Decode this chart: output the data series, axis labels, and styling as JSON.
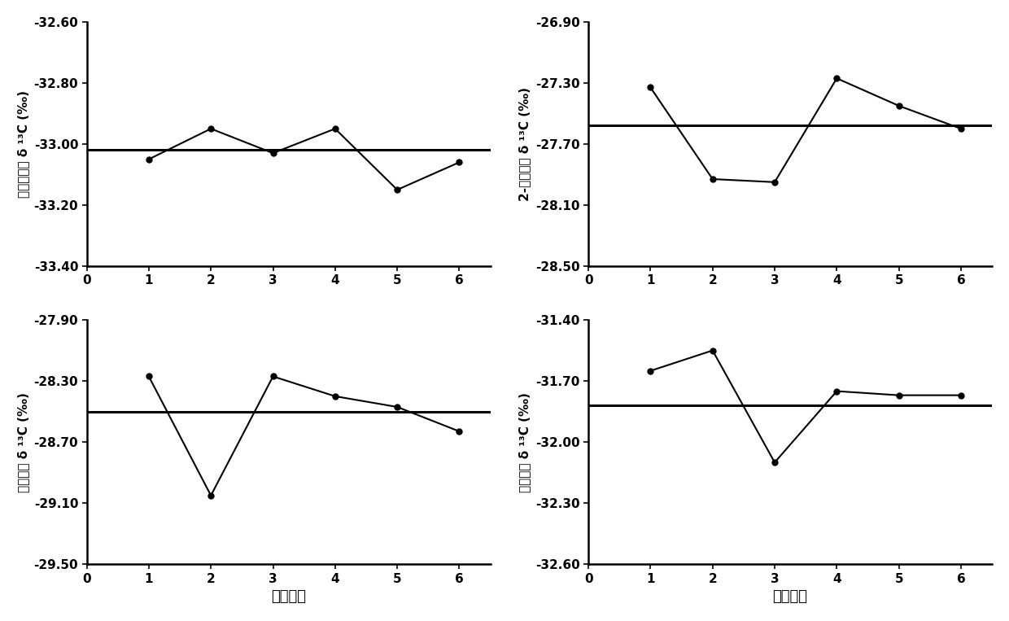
{
  "subplots": [
    {
      "ylabel_chinese": "乙酸异戊鄙",
      "ylabel_delta": "δ ¹³C (‰)",
      "xlabel": "",
      "x": [
        1,
        2,
        3,
        4,
        5,
        6
      ],
      "y": [
        -33.05,
        -32.95,
        -33.03,
        -32.95,
        -33.15,
        -33.06
      ],
      "hline": -33.02,
      "ylim": [
        -33.4,
        -32.6
      ],
      "yticks": [
        -33.4,
        -33.2,
        -33.0,
        -32.8,
        -32.6
      ],
      "ytick_labels": [
        "-33.40",
        "-33.20",
        "-33.00",
        "-32.80",
        "-32.60"
      ]
    },
    {
      "ylabel_chinese": "2-苯基乙醇",
      "ylabel_delta": "δ ¹³C (‰)",
      "xlabel": "",
      "x": [
        1,
        2,
        3,
        4,
        5,
        6
      ],
      "y": [
        -27.33,
        -27.93,
        -27.95,
        -27.27,
        -27.45,
        -27.6
      ],
      "hline": -27.58,
      "ylim": [
        -28.5,
        -26.9
      ],
      "yticks": [
        -28.5,
        -28.1,
        -27.7,
        -27.3,
        -26.9
      ],
      "ytick_labels": [
        "-28.50",
        "-28.10",
        "-27.70",
        "-27.30",
        "-26.90"
      ]
    },
    {
      "ylabel_chinese": "辛酸乙鄙",
      "ylabel_delta": "δ ¹³C (‰)",
      "xlabel": "实验次数",
      "x": [
        1,
        2,
        3,
        4,
        5,
        6
      ],
      "y": [
        -28.27,
        -29.05,
        -28.27,
        -28.4,
        -28.47,
        -28.63
      ],
      "hline": -28.5,
      "ylim": [
        -29.5,
        -27.9
      ],
      "yticks": [
        -29.5,
        -29.1,
        -28.7,
        -28.3,
        -27.9
      ],
      "ytick_labels": [
        "-29.50",
        "-29.10",
        "-28.70",
        "-28.30",
        "-27.90"
      ]
    },
    {
      "ylabel_chinese": "癸酸乙鄙",
      "ylabel_delta": "δ ¹³C (‰)",
      "xlabel": "实验次数",
      "x": [
        1,
        2,
        3,
        4,
        5,
        6
      ],
      "y": [
        -31.65,
        -31.55,
        -32.1,
        -31.75,
        -31.77,
        -31.77
      ],
      "hline": -31.82,
      "ylim": [
        -32.6,
        -31.4
      ],
      "yticks": [
        -32.6,
        -32.3,
        -32.0,
        -31.7,
        -31.4
      ],
      "ytick_labels": [
        "-32.60",
        "-32.30",
        "-32.00",
        "-31.70",
        "-31.40"
      ]
    }
  ],
  "line_color": "black",
  "marker": "o",
  "markersize": 5,
  "linewidth": 1.5,
  "hline_linewidth": 2.2,
  "background_color": "white",
  "xticks": [
    0,
    1,
    2,
    3,
    4,
    5,
    6
  ],
  "xlim": [
    0,
    6.5
  ]
}
